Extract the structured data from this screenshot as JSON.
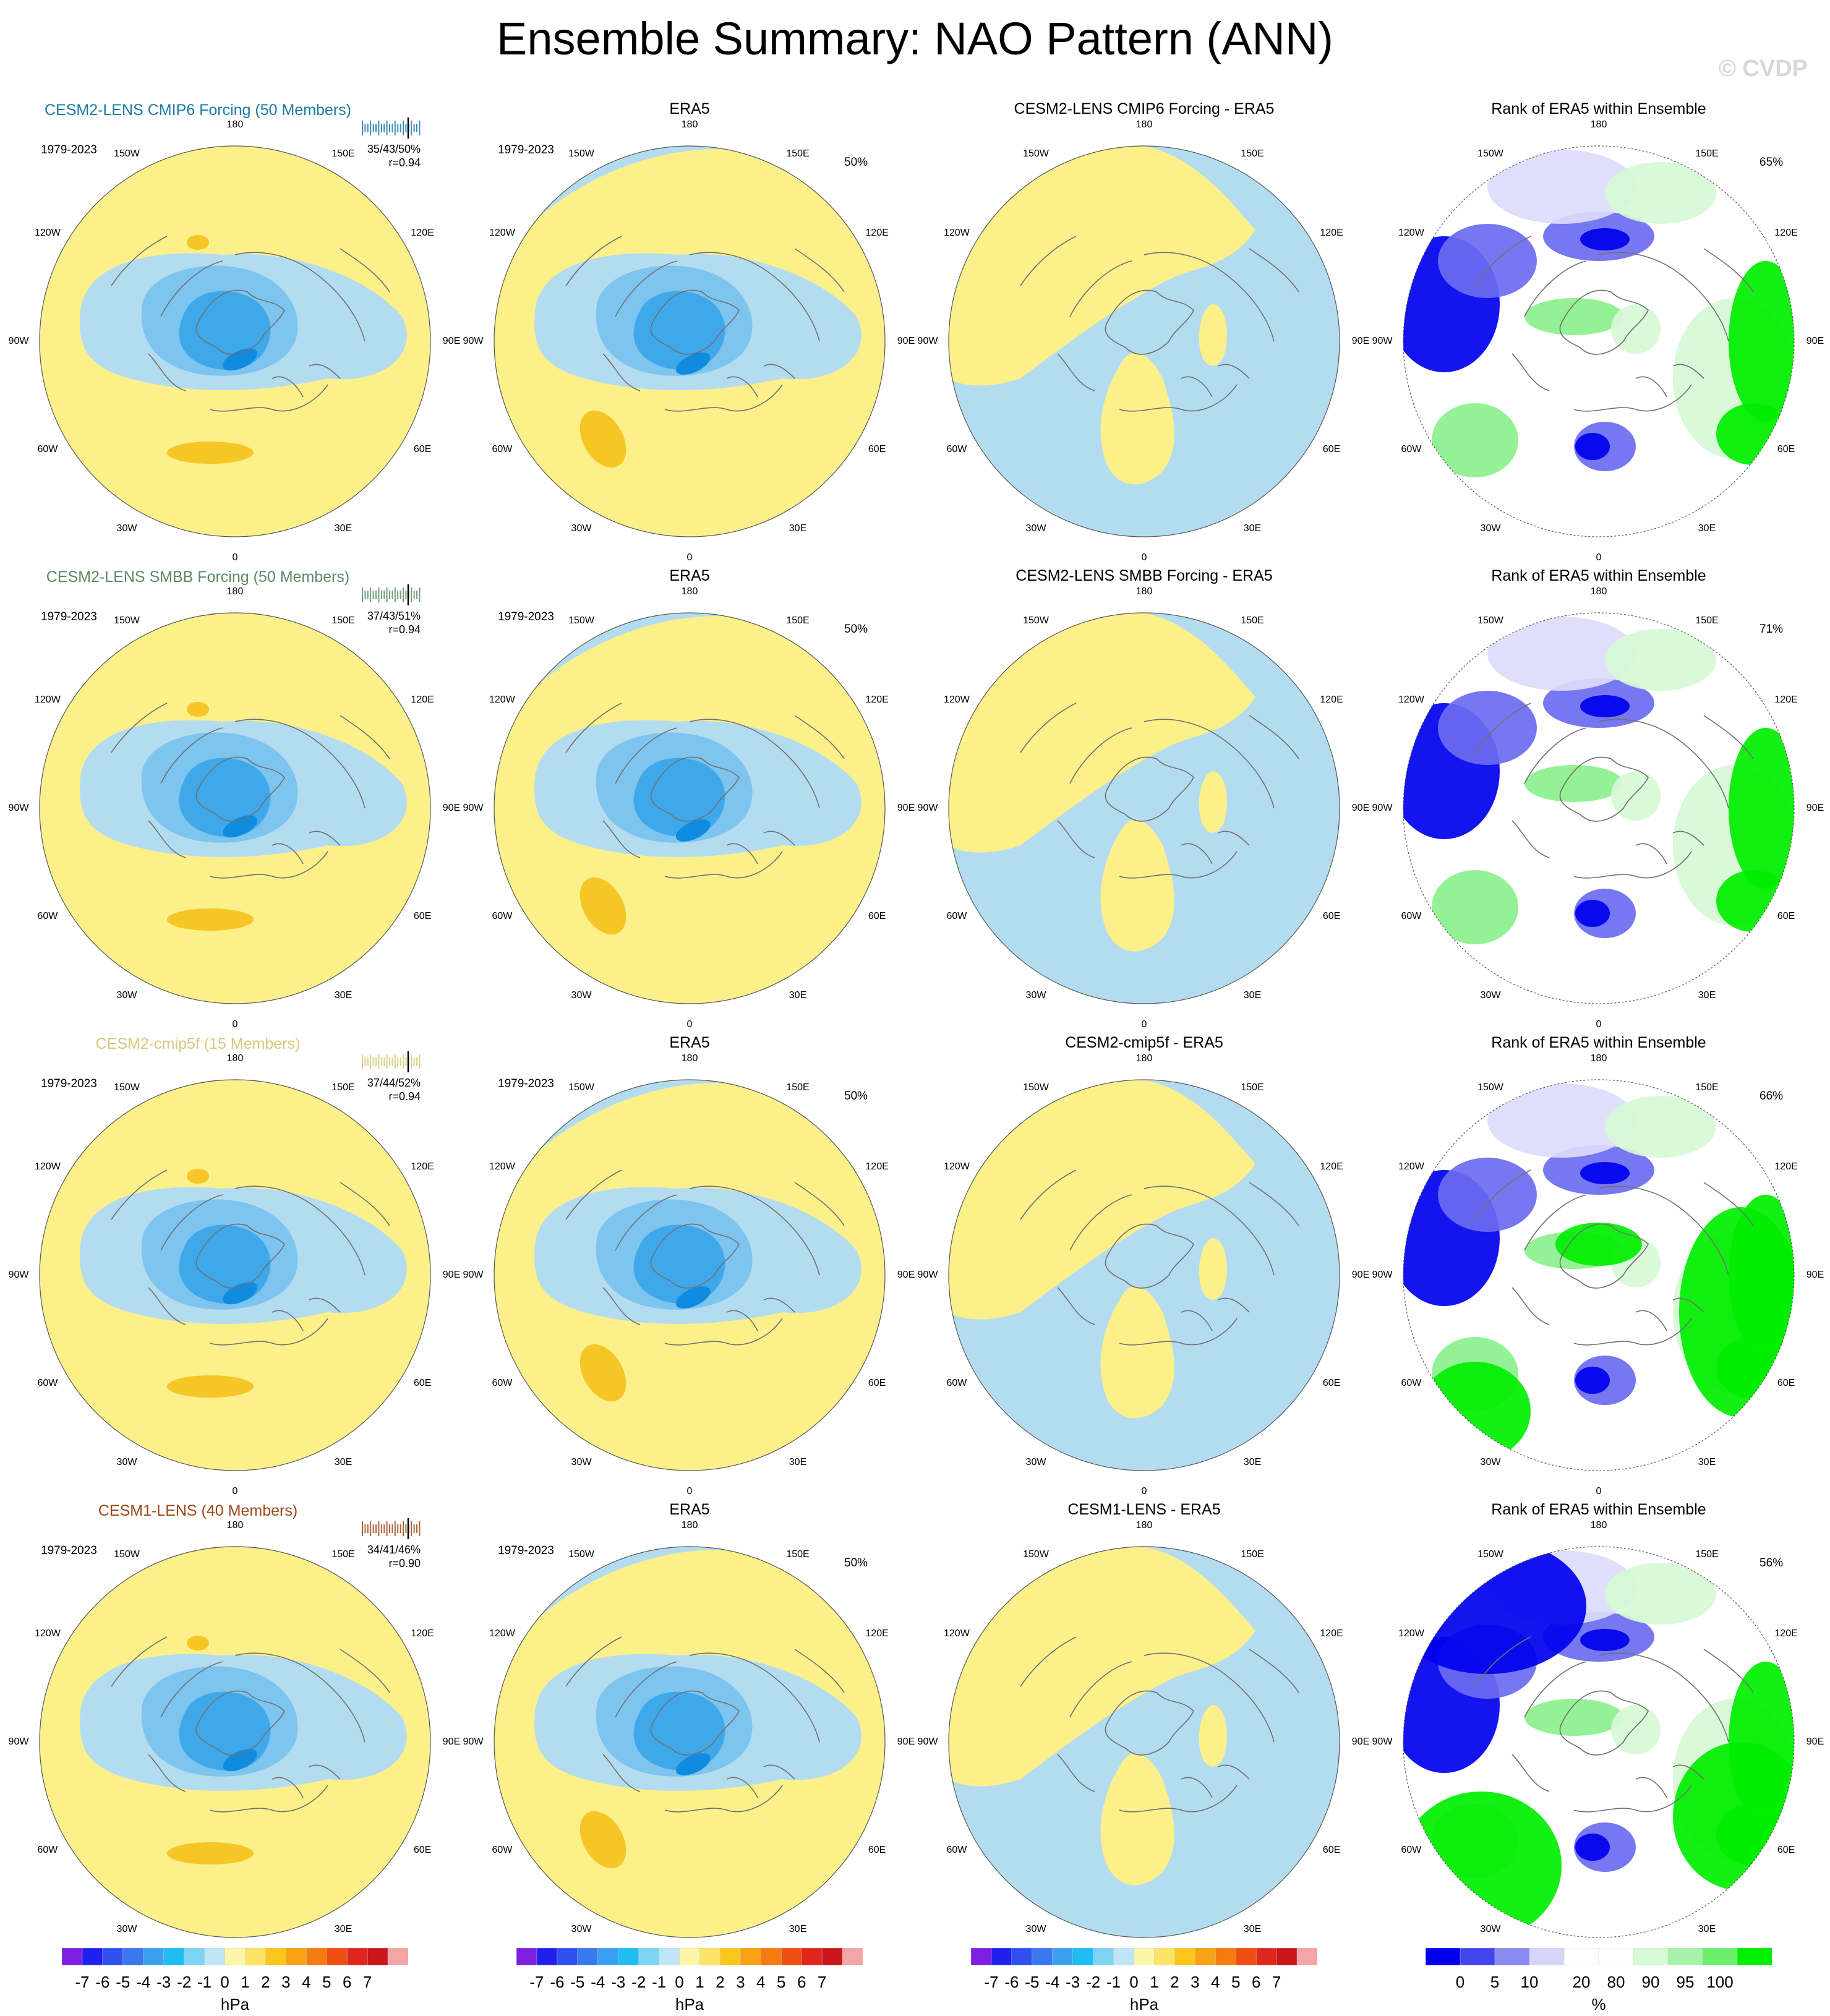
{
  "title": "Ensemble Summary: NAO Pattern (ANN)",
  "watermark": "© CVDP",
  "period": "1979-2023",
  "lon_labels": [
    "180",
    "150E",
    "120E",
    "90E",
    "60E",
    "30E",
    "0",
    "30W",
    "60W",
    "90W",
    "120W",
    "150W"
  ],
  "colors": {
    "pos_weak": "#fbf08a",
    "pos_mid": "#f5c626",
    "neg_weak": "#b4dcf0",
    "neg_mid": "#7dc4ef",
    "neg_strong": "#3fa8ea",
    "neg_core": "#0f8be0",
    "land_line": "#707070",
    "rank_low": "#0000ee",
    "rank_lowmid": "#6b6bf0",
    "rank_lowlight": "#dcdcfb",
    "rank_high": "#00ee00",
    "rank_highmid": "#8cf08c",
    "rank_highlight": "#d6f9d6"
  },
  "rows": [
    {
      "model_title": "CESM2-LENS CMIP6 Forcing (50 Members)",
      "model_color": "#1b7aa6",
      "stats_line1": "35/43/50%",
      "stats_line2": "r=0.94",
      "obs_title": "ERA5",
      "obs_pct": "50%",
      "diff_title": "CESM2-LENS CMIP6 Forcing - ERA5",
      "rank_title": "Rank of ERA5 within Ensemble",
      "rank_pct": "65%"
    },
    {
      "model_title": "CESM2-LENS SMBB Forcing (50 Members)",
      "model_color": "#5b8a63",
      "stats_line1": "37/43/51%",
      "stats_line2": "r=0.94",
      "obs_title": "ERA5",
      "obs_pct": "50%",
      "diff_title": "CESM2-LENS SMBB Forcing - ERA5",
      "rank_title": "Rank of ERA5 within Ensemble",
      "rank_pct": "71%"
    },
    {
      "model_title": "CESM2-cmip5f (15 Members)",
      "model_color": "#d9c77a",
      "stats_line1": "37/44/52%",
      "stats_line2": "r=0.94",
      "obs_title": "ERA5",
      "obs_pct": "50%",
      "diff_title": "CESM2-cmip5f - ERA5",
      "rank_title": "Rank of ERA5 within Ensemble",
      "rank_pct": "66%"
    },
    {
      "model_title": "CESM1-LENS (40 Members)",
      "model_color": "#9a4a18",
      "stats_line1": "34/41/46%",
      "stats_line2": "r=0.90",
      "obs_title": "ERA5",
      "obs_pct": "50%",
      "diff_title": "CESM1-LENS - ERA5",
      "rank_title": "Rank of ERA5 within Ensemble",
      "rank_pct": "56%"
    }
  ],
  "colorbar_hpa": {
    "colors": [
      "#7d1ee0",
      "#2020ee",
      "#2f50f0",
      "#3a78f0",
      "#3aa0f0",
      "#1fbdf4",
      "#7fd4f6",
      "#bfe6f6",
      "#fdf5a8",
      "#fde466",
      "#fcc61c",
      "#f9a213",
      "#f47b10",
      "#ee4e12",
      "#e0261a",
      "#c8161c",
      "#f4a5a5"
    ],
    "ticks": [
      "-7",
      "-6",
      "-5",
      "-4",
      "-3",
      "-2",
      "-1",
      "0",
      "1",
      "2",
      "3",
      "4",
      "5",
      "6",
      "7"
    ],
    "unit": "hPa"
  },
  "colorbar_rank": {
    "colors": [
      "#0000ee",
      "#4444ee",
      "#8a8af2",
      "#d5d5fa",
      "#ffffff",
      "#ffffff",
      "#d6f9d6",
      "#a8f3a8",
      "#6af06a",
      "#00ee00"
    ],
    "ticks": [
      "0",
      "5",
      "10",
      "20",
      "80",
      "90",
      "95",
      "100"
    ],
    "unit": "%"
  }
}
